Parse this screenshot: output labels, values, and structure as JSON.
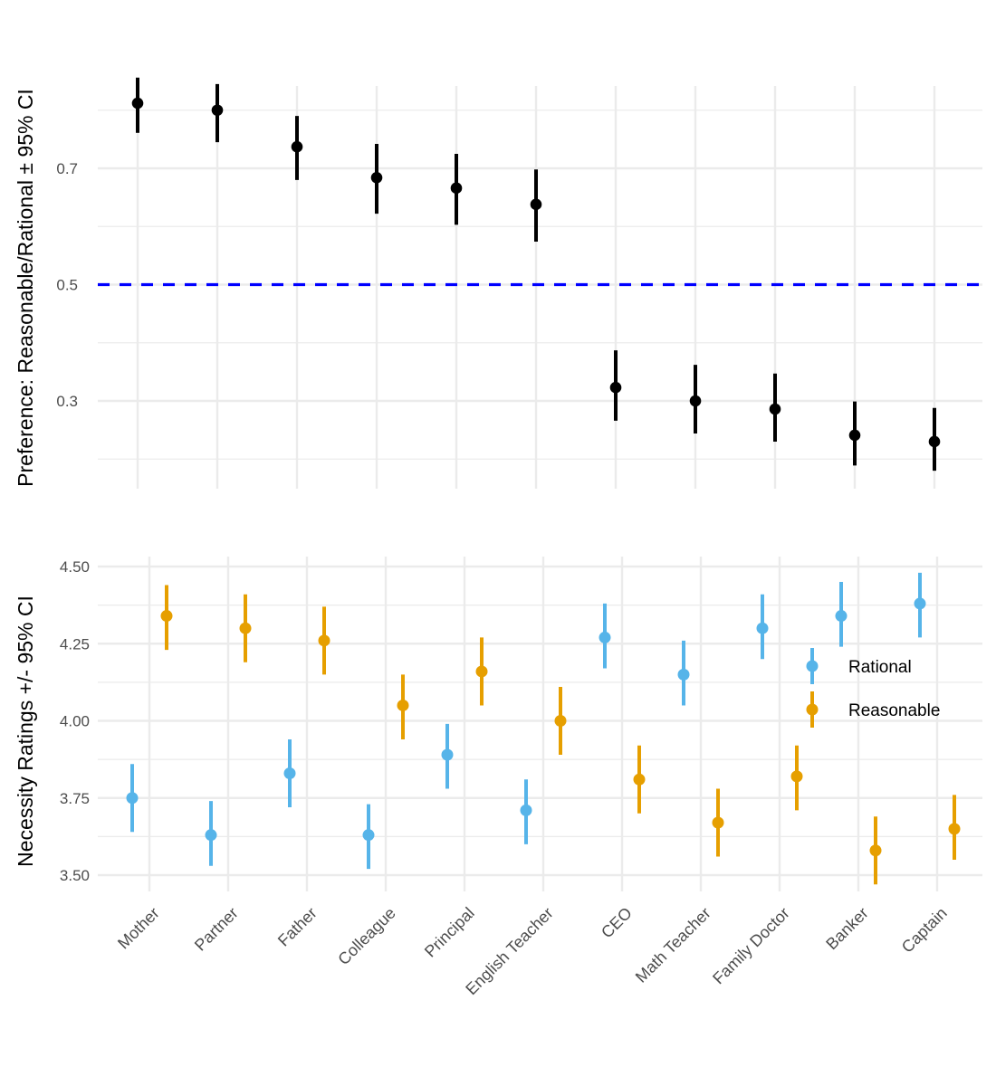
{
  "chart_data": [
    {
      "type": "scatter",
      "subtype": "pointrange",
      "panel": "top",
      "title": "",
      "xlabel": "",
      "ylabel": "Preference: Reasonable/Rational ± 95% CI",
      "ylim": [
        0.17,
        0.87
      ],
      "yticks": [
        0.3,
        0.5,
        0.7
      ],
      "ytick_labels": [
        "0.3",
        "0.5",
        "0.7"
      ],
      "grid": true,
      "reference_line": {
        "y": 0.5,
        "style": "dashed",
        "color": "#0000ff"
      },
      "categories": [
        "Mother",
        "Partner",
        "Father",
        "Colleague",
        "Principal",
        "English Teacher",
        "CEO",
        "Math Teacher",
        "Family Doctor",
        "Banker",
        "Captain"
      ],
      "series": [
        {
          "name": "Preference",
          "color": "#000000",
          "values": [
            0.812,
            0.8,
            0.737,
            0.684,
            0.666,
            0.638,
            0.323,
            0.3,
            0.286,
            0.241,
            0.23
          ],
          "ci_low": [
            0.761,
            0.745,
            0.68,
            0.622,
            0.603,
            0.574,
            0.266,
            0.244,
            0.23,
            0.189,
            0.18
          ],
          "ci_high": [
            0.856,
            0.845,
            0.79,
            0.742,
            0.725,
            0.698,
            0.387,
            0.362,
            0.347,
            0.299,
            0.288
          ]
        }
      ]
    },
    {
      "type": "scatter",
      "subtype": "pointrange",
      "panel": "bottom",
      "title": "",
      "xlabel": "",
      "ylabel": "Necessity Ratings +/- 95% CI",
      "ylim": [
        3.45,
        4.53
      ],
      "yticks": [
        3.5,
        3.75,
        4.0,
        4.25,
        4.5
      ],
      "ytick_labels": [
        "3.50",
        "3.75",
        "4.00",
        "4.25",
        "4.50"
      ],
      "grid": true,
      "legend": {
        "placement": "right-inside",
        "entries": [
          "Rational",
          "Reasonable"
        ]
      },
      "categories": [
        "Mother",
        "Partner",
        "Father",
        "Colleague",
        "Principal",
        "English Teacher",
        "CEO",
        "Math Teacher",
        "Family Doctor",
        "Banker",
        "Captain"
      ],
      "series": [
        {
          "name": "Rational",
          "color": "#56b4e9",
          "values": [
            3.75,
            3.63,
            3.83,
            3.63,
            3.89,
            3.71,
            4.27,
            4.15,
            4.3,
            4.34,
            4.38
          ],
          "ci_low": [
            3.64,
            3.53,
            3.72,
            3.52,
            3.78,
            3.6,
            4.17,
            4.05,
            4.2,
            4.24,
            4.27
          ],
          "ci_high": [
            3.86,
            3.74,
            3.94,
            3.73,
            3.99,
            3.81,
            4.38,
            4.26,
            4.41,
            4.45,
            4.48
          ]
        },
        {
          "name": "Reasonable",
          "color": "#e69f00",
          "values": [
            4.34,
            4.3,
            4.26,
            4.05,
            4.16,
            4.0,
            3.81,
            3.67,
            3.82,
            3.58,
            3.65
          ],
          "ci_low": [
            4.23,
            4.19,
            4.15,
            3.94,
            4.05,
            3.89,
            3.7,
            3.56,
            3.71,
            3.47,
            3.55
          ],
          "ci_high": [
            4.44,
            4.41,
            4.37,
            4.15,
            4.27,
            4.11,
            3.92,
            3.78,
            3.92,
            3.69,
            3.76
          ]
        }
      ]
    }
  ],
  "legend": {
    "items": [
      {
        "label": "Rational",
        "color": "#56b4e9"
      },
      {
        "label": "Reasonable",
        "color": "#e69f00"
      }
    ]
  }
}
